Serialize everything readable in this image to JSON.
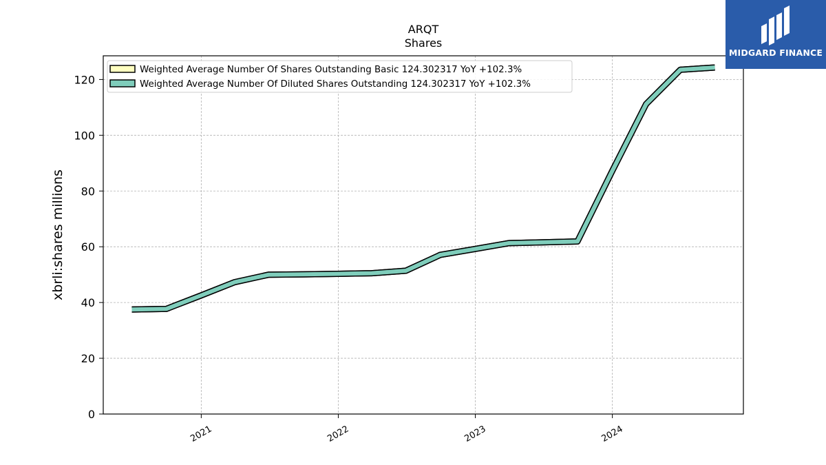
{
  "chart_data": {
    "type": "line",
    "title": "ARQT",
    "subtitle": "Shares",
    "xlabel": "",
    "ylabel": "xbrli:shares millions",
    "ylim": [
      0,
      128.5
    ],
    "yticks": [
      0,
      20,
      40,
      60,
      80,
      100,
      120
    ],
    "xlim": [
      "2020-04-15",
      "2024-12-15"
    ],
    "xticks": [
      "2021-01-01",
      "2022-01-01",
      "2023-01-01",
      "2024-01-01"
    ],
    "xtick_labels": [
      "2021",
      "2022",
      "2023",
      "2024"
    ],
    "grid": true,
    "legend_position": "top-left",
    "x": [
      "2020-06-30",
      "2020-09-30",
      "2020-12-31",
      "2021-03-31",
      "2021-06-30",
      "2021-09-30",
      "2021-12-31",
      "2022-03-31",
      "2022-06-30",
      "2022-09-30",
      "2022-12-31",
      "2023-03-31",
      "2023-06-30",
      "2023-09-30",
      "2023-12-31",
      "2024-03-31",
      "2024-06-30",
      "2024-09-30"
    ],
    "series": [
      {
        "name": "Weighted Average Number Of Shares Outstanding Basic  124.302317 YoY +102.3%",
        "color": "#ffffc0",
        "values": [
          37.5,
          37.7,
          42.5,
          47.3,
          50.0,
          50.1,
          50.3,
          50.5,
          51.4,
          57.1,
          59.2,
          61.3,
          61.6,
          61.9,
          87.0,
          111.2,
          123.5,
          124.3
        ]
      },
      {
        "name": "Weighted Average Number Of Diluted Shares Outstanding  124.302317 YoY +102.3%",
        "color": "#7fcdbb",
        "values": [
          37.5,
          37.7,
          42.5,
          47.3,
          50.0,
          50.1,
          50.3,
          50.5,
          51.4,
          57.1,
          59.2,
          61.3,
          61.6,
          61.9,
          87.0,
          111.2,
          123.5,
          124.3
        ]
      }
    ]
  },
  "logo": {
    "text": "MIDGARD FINANCE",
    "color": "#2a5caa"
  }
}
